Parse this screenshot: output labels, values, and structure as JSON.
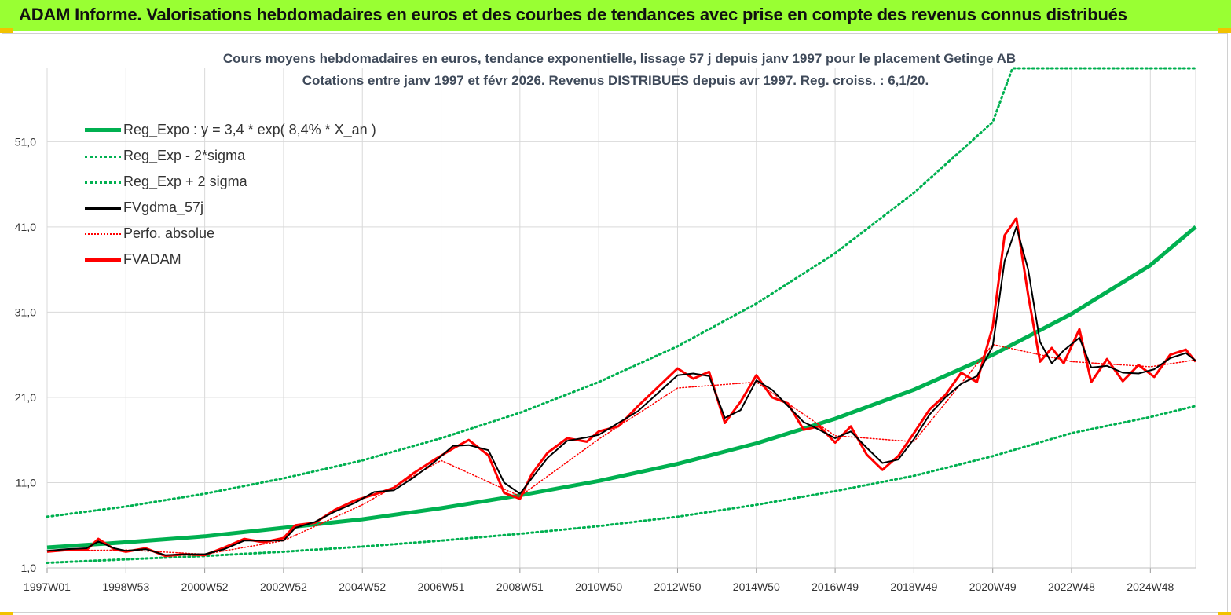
{
  "header": {
    "title": "ADAM Informe. Valorisations hebdomadaires en euros et des courbes de tendances avec prise en compte des revenus connus distribués"
  },
  "colors": {
    "header_bg": "#99ff33",
    "reg_expo": "#00b050",
    "fvgdma": "#000000",
    "fvadam": "#ff0000",
    "perfo": "#ff0000",
    "grid": "#d9d9d9"
  },
  "chart_data": {
    "type": "line",
    "title": "Cours moyens hebdomadaires en euros, tendance exponentielle, lissage 57 j depuis janv 1997 pour le placement Getinge AB",
    "subtitle": "Cotations entre janv 1997 et févr 2026. Revenus DISTRIBUES depuis avr 1997. Reg. croiss. : 6,1/20.",
    "xlabel": "",
    "ylabel": "",
    "ylim": [
      1,
      59.6
    ],
    "xlim": [
      1997.0,
      2026.15
    ],
    "y_ticks": [
      "1,0",
      "11,0",
      "21,0",
      "31,0",
      "41,0",
      "51,0"
    ],
    "y_tick_values": [
      1,
      11,
      21,
      31,
      41,
      51
    ],
    "x_ticks": [
      "1997W01",
      "1998W53",
      "2000W52",
      "2002W52",
      "2004W52",
      "2006W51",
      "2008W51",
      "2010W50",
      "2012W50",
      "2014W50",
      "2016W49",
      "2018W49",
      "2020W49",
      "2022W48",
      "2024W48"
    ],
    "x_tick_values": [
      1997.0,
      1999.0,
      2001.0,
      2003.0,
      2005.0,
      2007.0,
      2009.0,
      2011.0,
      2013.0,
      2015.0,
      2017.0,
      2019.0,
      2021.0,
      2023.0,
      2025.0
    ],
    "grid": true,
    "legend_position": "top-left",
    "series": [
      {
        "name": "Reg_Expo : y = 3,4 * exp( 8,4% *  X_an )",
        "style": "solid-thick",
        "color": "#00b050",
        "x": [
          1997.0,
          1999.0,
          2001.0,
          2003.0,
          2005.0,
          2007.0,
          2009.0,
          2011.0,
          2013.0,
          2015.0,
          2017.0,
          2019.0,
          2021.0,
          2023.0,
          2025.0,
          2026.15
        ],
        "values": [
          3.4,
          4.0,
          4.7,
          5.7,
          6.7,
          8.0,
          9.5,
          11.2,
          13.2,
          15.6,
          18.5,
          21.9,
          26.0,
          30.8,
          36.5,
          41.0
        ]
      },
      {
        "name": "Reg_Exp - 2*sigma",
        "style": "dotted",
        "color": "#00b050",
        "x": [
          1997.0,
          1999.0,
          2001.0,
          2003.0,
          2005.0,
          2007.0,
          2009.0,
          2011.0,
          2013.0,
          2015.0,
          2017.0,
          2019.0,
          2021.0,
          2023.0,
          2025.0,
          2026.15
        ],
        "values": [
          1.6,
          2.0,
          2.4,
          2.9,
          3.5,
          4.2,
          5.0,
          5.9,
          7.0,
          8.4,
          10.0,
          11.8,
          14.1,
          16.8,
          18.7,
          20.0
        ]
      },
      {
        "name": "Reg_Exp + 2 sigma",
        "style": "dotted",
        "color": "#00b050",
        "x": [
          1997.0,
          1999.0,
          2001.0,
          2003.0,
          2005.0,
          2007.0,
          2009.0,
          2011.0,
          2013.0,
          2015.0,
          2017.0,
          2019.0,
          2021.0,
          2021.5,
          2023.0,
          2025.0,
          2026.15
        ],
        "values": [
          7.0,
          8.2,
          9.7,
          11.5,
          13.6,
          16.2,
          19.2,
          22.8,
          27.0,
          32.0,
          37.9,
          45.0,
          53.3,
          59.6,
          59.6,
          59.6,
          59.6
        ]
      },
      {
        "name": "FVgdma_57j",
        "style": "solid-thin",
        "color": "#000000",
        "x": [
          1997.0,
          1997.5,
          1998.0,
          1998.3,
          1998.7,
          1999.0,
          1999.5,
          2000.0,
          2000.5,
          2001.0,
          2001.5,
          2002.0,
          2002.5,
          2003.0,
          2003.3,
          2003.8,
          2004.3,
          2004.8,
          2005.3,
          2005.8,
          2006.3,
          2006.8,
          2007.3,
          2007.7,
          2008.2,
          2008.6,
          2009.0,
          2009.3,
          2009.7,
          2010.2,
          2010.7,
          2011.0,
          2011.5,
          2012.0,
          2012.5,
          2013.0,
          2013.4,
          2013.8,
          2014.2,
          2014.6,
          2015.0,
          2015.4,
          2015.8,
          2016.2,
          2016.6,
          2017.0,
          2017.4,
          2017.8,
          2018.2,
          2018.6,
          2019.0,
          2019.4,
          2019.8,
          2020.2,
          2020.6,
          2021.0,
          2021.3,
          2021.6,
          2021.9,
          2022.2,
          2022.5,
          2022.8,
          2023.2,
          2023.5,
          2023.9,
          2024.3,
          2024.7,
          2025.1,
          2025.5,
          2025.9,
          2026.15
        ],
        "values": [
          3.0,
          3.2,
          3.3,
          4.1,
          3.3,
          3.0,
          3.2,
          2.5,
          2.6,
          2.6,
          3.2,
          4.2,
          4.2,
          4.2,
          5.7,
          6.4,
          7.6,
          8.6,
          9.9,
          10.1,
          11.6,
          13.3,
          15.3,
          15.4,
          14.8,
          11.0,
          9.7,
          11.5,
          13.9,
          15.9,
          16.3,
          16.6,
          18.0,
          19.4,
          21.5,
          23.6,
          23.8,
          23.5,
          18.6,
          19.5,
          23.0,
          21.9,
          20.0,
          18.1,
          17.2,
          16.2,
          17.0,
          15.1,
          13.3,
          13.7,
          16.1,
          19.0,
          21.0,
          22.6,
          23.5,
          27.0,
          37.0,
          41.0,
          36.0,
          27.5,
          25.0,
          26.5,
          28.0,
          24.5,
          24.7,
          23.9,
          23.8,
          24.3,
          25.6,
          26.2,
          25.3
        ]
      },
      {
        "name": "Perfo. absolue",
        "style": "dotted",
        "color": "#ff0000",
        "x": [
          1997.0,
          1999.0,
          2001.0,
          2003.0,
          2005.0,
          2007.0,
          2009.0,
          2011.0,
          2013.0,
          2015.0,
          2017.0,
          2019.0,
          2021.0,
          2023.0,
          2025.0,
          2026.15
        ],
        "values": [
          3.0,
          3.1,
          2.6,
          4.2,
          8.4,
          13.6,
          9.4,
          16.1,
          22.1,
          22.8,
          16.5,
          15.8,
          27.2,
          25.2,
          24.6,
          25.4
        ]
      },
      {
        "name": "FVADAM",
        "style": "solid-thick",
        "color": "#ff0000",
        "x": [
          1997.0,
          1997.5,
          1998.0,
          1998.3,
          1998.7,
          1999.0,
          1999.5,
          2000.0,
          2000.5,
          2001.0,
          2001.5,
          2002.0,
          2002.5,
          2003.0,
          2003.3,
          2003.8,
          2004.3,
          2004.8,
          2005.3,
          2005.8,
          2006.3,
          2006.8,
          2007.3,
          2007.7,
          2008.2,
          2008.6,
          2009.0,
          2009.3,
          2009.7,
          2010.2,
          2010.7,
          2011.0,
          2011.5,
          2012.0,
          2012.5,
          2013.0,
          2013.4,
          2013.8,
          2014.2,
          2014.6,
          2015.0,
          2015.4,
          2015.8,
          2016.2,
          2016.6,
          2017.0,
          2017.4,
          2017.8,
          2018.2,
          2018.6,
          2019.0,
          2019.4,
          2019.8,
          2020.2,
          2020.6,
          2021.0,
          2021.3,
          2021.6,
          2021.9,
          2022.2,
          2022.5,
          2022.8,
          2023.2,
          2023.5,
          2023.9,
          2024.3,
          2024.7,
          2025.1,
          2025.5,
          2025.9,
          2026.15
        ],
        "values": [
          2.9,
          3.1,
          3.1,
          4.4,
          3.2,
          2.9,
          3.3,
          2.4,
          2.6,
          2.5,
          3.4,
          4.4,
          4.0,
          4.5,
          6.0,
          6.3,
          7.8,
          8.9,
          9.6,
          10.4,
          12.1,
          13.6,
          15.0,
          16.0,
          14.2,
          9.8,
          9.1,
          12.0,
          14.5,
          16.2,
          15.8,
          17.0,
          17.6,
          20.0,
          22.2,
          24.4,
          23.2,
          24.0,
          18.0,
          20.5,
          23.6,
          21.0,
          20.3,
          17.2,
          17.6,
          15.7,
          17.6,
          14.3,
          12.5,
          14.1,
          16.8,
          19.6,
          21.3,
          23.9,
          22.8,
          29.3,
          40.0,
          42.0,
          33.0,
          25.2,
          26.8,
          25.0,
          29.0,
          22.8,
          25.5,
          22.9,
          24.8,
          23.4,
          26.0,
          26.6,
          25.2
        ]
      }
    ]
  }
}
